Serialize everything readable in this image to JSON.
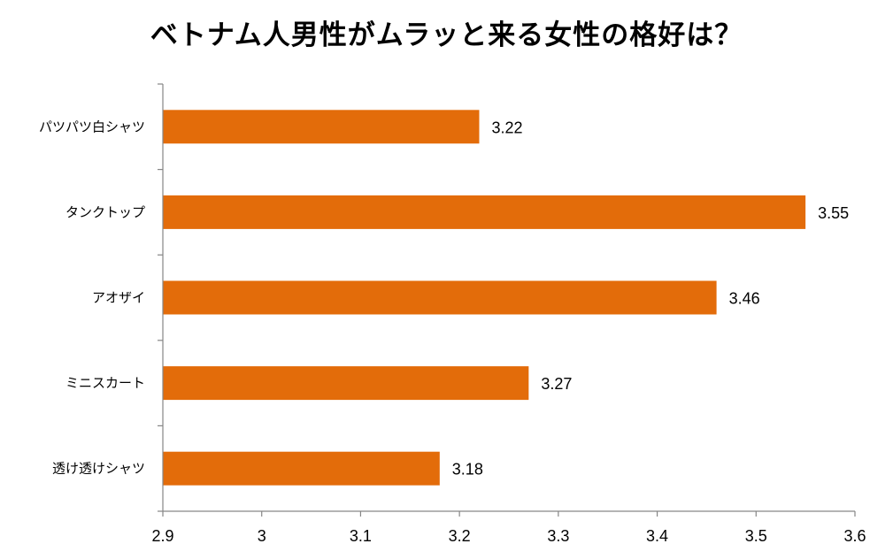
{
  "chart_data": {
    "type": "bar",
    "orientation": "horizontal",
    "title": "ベトナム人男性がムラッと来る女性の格好は？",
    "categories": [
      "パツパツ白シャツ",
      "タンクトップ",
      "アオザイ",
      "ミニスカート",
      "透け透けシャツ"
    ],
    "values": [
      3.22,
      3.55,
      3.46,
      3.27,
      3.18
    ],
    "data_labels": [
      "3.22",
      "3.55",
      "3.46",
      "3.27",
      "3.18"
    ],
    "x_ticks": [
      "2.9",
      "3",
      "3.1",
      "3.2",
      "3.3",
      "3.4",
      "3.5",
      "3.6"
    ],
    "xlim": [
      2.9,
      3.6
    ],
    "xlabel": "",
    "ylabel": "",
    "bar_color": "#E36C0A",
    "axis_color": "#868686",
    "grid": false,
    "legend": "none"
  }
}
